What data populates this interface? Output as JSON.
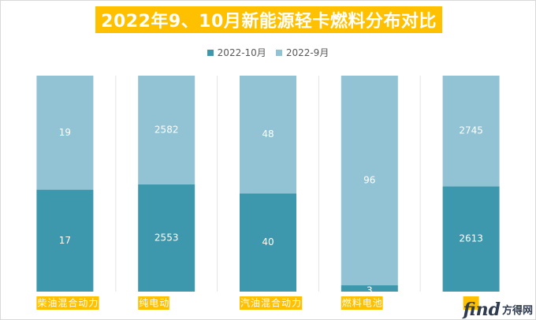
{
  "chart_data": {
    "type": "bar",
    "stacked": true,
    "normalized": true,
    "title": "2022年9、10月新能源轻卡燃料分布对比",
    "categories": [
      "柴油混合动力",
      "纯电动",
      "汽油混合动力",
      "燃料电池",
      ""
    ],
    "series": [
      {
        "name": "2022-10月",
        "values": [
          17,
          2553,
          40,
          3,
          2613
        ],
        "color": "#3d97ad"
      },
      {
        "name": "2022-9月",
        "values": [
          19,
          2582,
          48,
          96,
          2745
        ],
        "color": "#92c3d4"
      }
    ],
    "legend_position": "top",
    "grid": false,
    "category_label_bg": "#ffc000",
    "category_label_color": "#ffffff"
  },
  "watermark": {
    "logo": "find",
    "text": "方得网"
  }
}
